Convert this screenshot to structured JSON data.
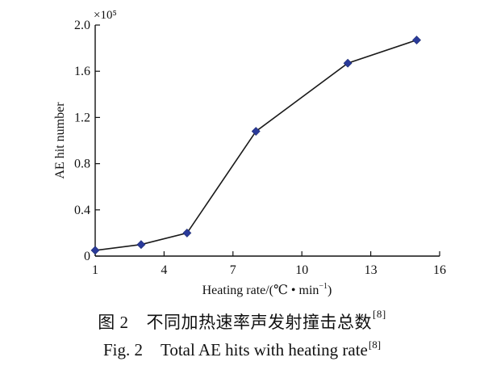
{
  "chart_data": {
    "type": "line",
    "x": [
      1,
      3,
      5,
      8,
      12,
      15
    ],
    "y": [
      0.05,
      0.1,
      0.2,
      1.08,
      1.67,
      1.87
    ],
    "y_multiplier_label": "×10⁵",
    "xlabel_main": "Heating rate/(℃ • min",
    "xlabel_sup": "−1",
    "xlabel_end": ")",
    "ylabel": "AE hit number",
    "xlim": [
      1,
      16
    ],
    "ylim": [
      0,
      2.0
    ],
    "xticks": [
      1,
      4,
      7,
      10,
      13,
      16
    ],
    "xtick_labels": [
      "1",
      "4",
      "7",
      "10",
      "13",
      "16"
    ],
    "yticks": [
      0,
      0.4,
      0.8,
      1.2,
      1.6,
      2.0
    ],
    "ytick_labels": [
      "0",
      "0.4",
      "0.8",
      "1.2",
      "1.6",
      "2.0"
    ],
    "grid": false,
    "line_color": "#1a1a1a",
    "marker_color": "#2a3a9a",
    "marker": "diamond"
  },
  "caption_cn": {
    "fig_no": "图 2",
    "text": "不同加热速率声发射撞击总数",
    "ref": "[8]"
  },
  "caption_en": {
    "fig_no": "Fig. 2",
    "text": "Total AE hits with heating rate",
    "ref": "[8]"
  }
}
